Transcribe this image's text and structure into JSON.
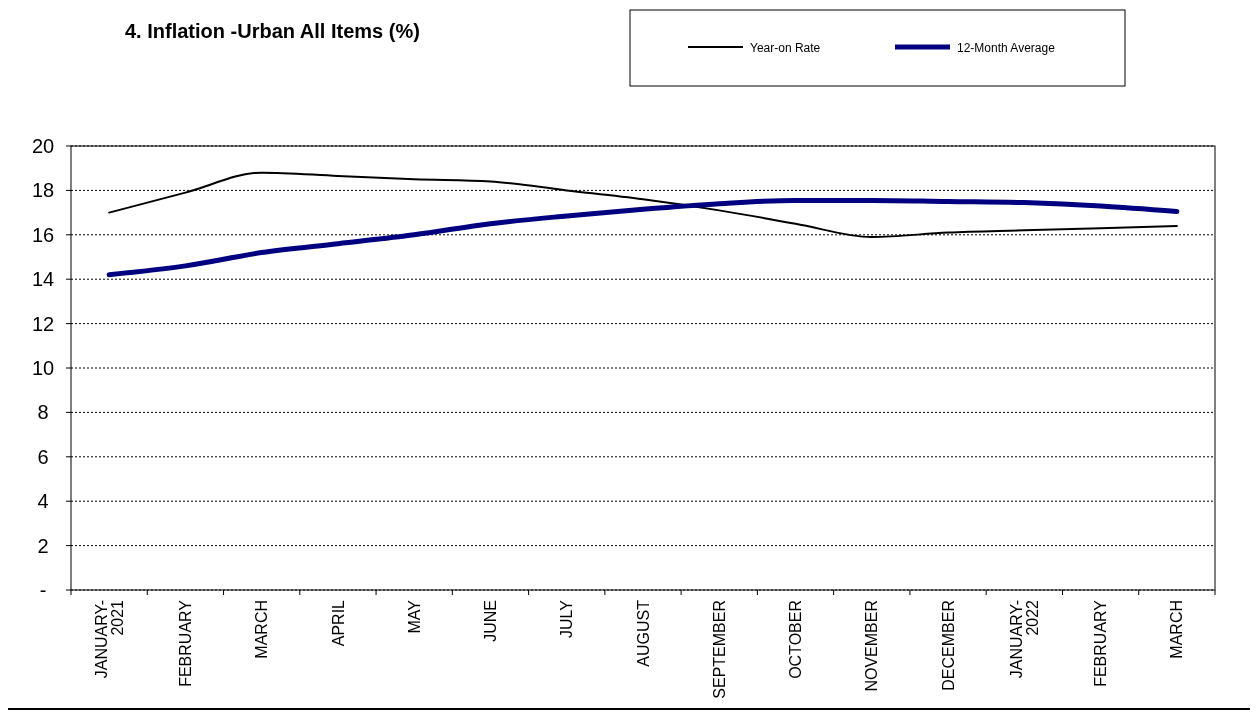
{
  "chart_data": {
    "type": "line",
    "title": "4. Inflation -Urban All Items (%)",
    "categories": [
      "JANUARY-2021",
      "FEBRUARY",
      "MARCH",
      "APRIL",
      "MAY",
      "JUNE",
      "JULY",
      "AUGUST",
      "SEPTEMBER",
      "OCTOBER",
      "NOVEMBER",
      "DECEMBER",
      "JANUARY-2022",
      "FEBRUARY",
      "MARCH"
    ],
    "series": [
      {
        "name": "Year-on Rate",
        "color": "#000000",
        "values": [
          17.0,
          17.9,
          18.8,
          18.65,
          18.5,
          18.4,
          18.0,
          17.6,
          17.1,
          16.5,
          15.9,
          16.1,
          16.2,
          16.3,
          16.4
        ]
      },
      {
        "name": "12-Month Average",
        "color": "#000080",
        "values": [
          14.2,
          14.6,
          15.2,
          15.6,
          16.0,
          16.5,
          16.85,
          17.15,
          17.4,
          17.55,
          17.55,
          17.5,
          17.45,
          17.3,
          17.05
        ]
      }
    ],
    "ylim": [
      0,
      20
    ],
    "yticks": [
      {
        "value": 0,
        "label": "-"
      },
      2,
      4,
      6,
      8,
      10,
      12,
      14,
      16,
      18,
      20
    ],
    "grid": "y",
    "legend": "top right",
    "line_style": "solid",
    "marker": "none"
  }
}
